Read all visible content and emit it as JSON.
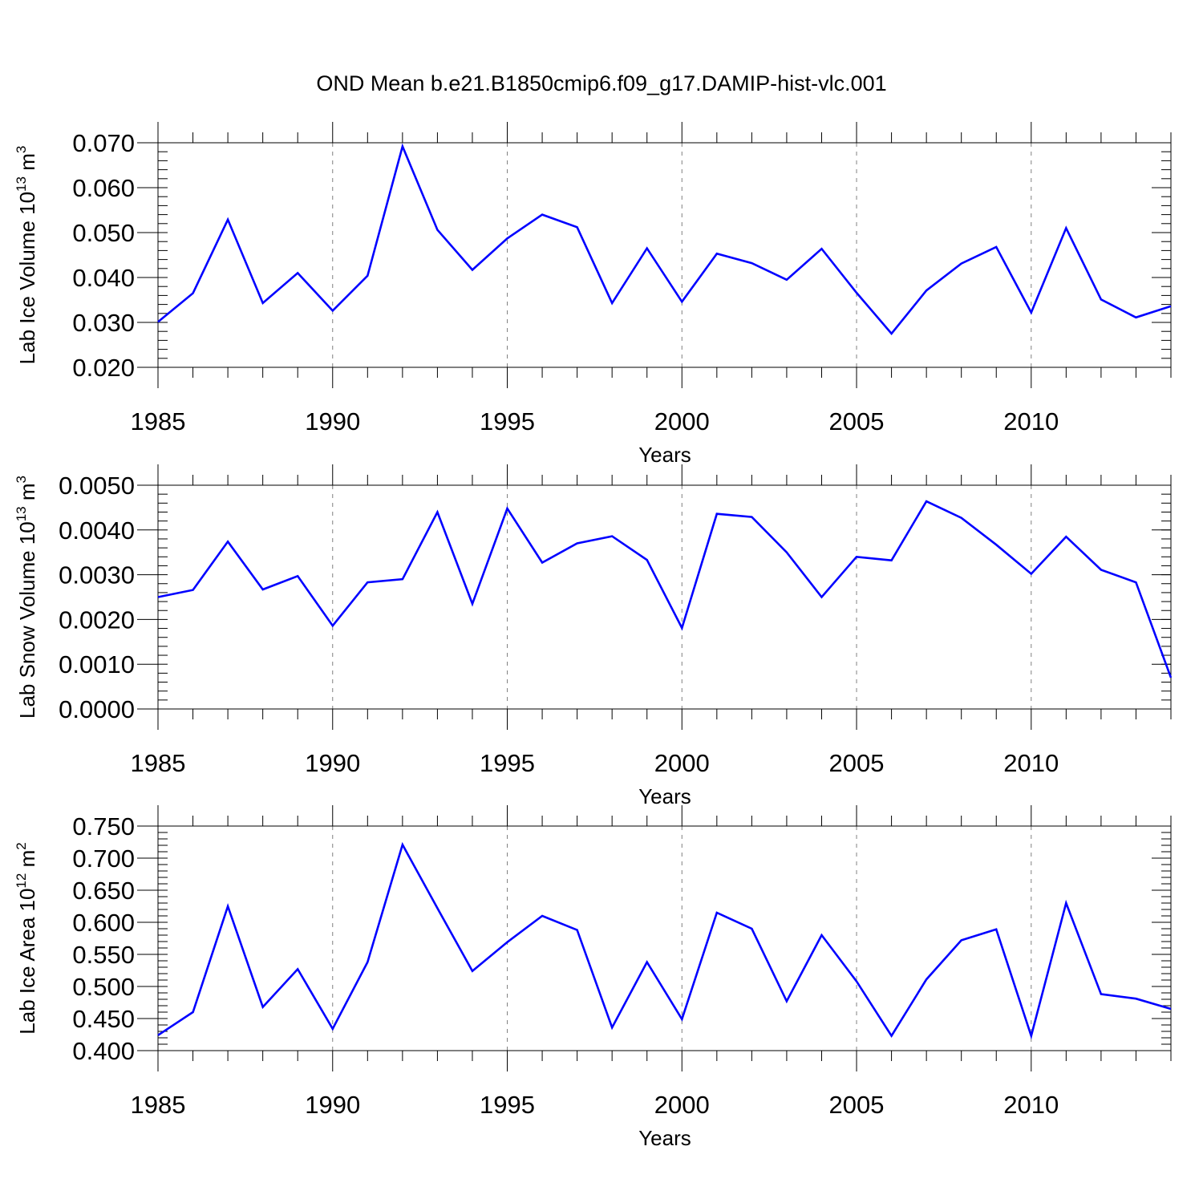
{
  "figure": {
    "title": "OND Mean b.e21.B1850cmip6.f09_g17.DAMIP-hist-vlc.001",
    "line_color": "#0000ff",
    "grid_color": "#808080"
  },
  "chart_data": [
    {
      "type": "line",
      "title": "",
      "xlabel": "Years",
      "ylabel_main": "Lab Ice Volume 10",
      "ylabel_exp": "13",
      "ylabel_unit": " m",
      "ylabel_unit_exp": "3",
      "xlim": [
        1985,
        2014
      ],
      "ylim": [
        0.02,
        0.07
      ],
      "xticks": [
        1985,
        1990,
        1995,
        2000,
        2005,
        2010
      ],
      "xtick_labels": [
        "1985",
        "1990",
        "1995",
        "2000",
        "2005",
        "2010"
      ],
      "yticks": [
        0.02,
        0.03,
        0.04,
        0.05,
        0.06,
        0.07
      ],
      "ytick_labels": [
        "0.020",
        "0.030",
        "0.040",
        "0.050",
        "0.060",
        "0.070"
      ],
      "y_minor_step": 0.002,
      "grid": "vertical dashed at major x ticks",
      "x": [
        1985,
        1986,
        1987,
        1988,
        1989,
        1990,
        1991,
        1992,
        1993,
        1994,
        1995,
        1996,
        1997,
        1998,
        1999,
        2000,
        2001,
        2002,
        2003,
        2004,
        2005,
        2006,
        2007,
        2008,
        2009,
        2010,
        2011,
        2012,
        2013,
        2014
      ],
      "series": [
        {
          "values": [
            0.0301,
            0.0365,
            0.0529,
            0.0343,
            0.041,
            0.0326,
            0.0404,
            0.0692,
            0.0506,
            0.0417,
            0.0487,
            0.054,
            0.0512,
            0.0343,
            0.0465,
            0.0346,
            0.0453,
            0.0432,
            0.0395,
            0.0464,
            0.0366,
            0.0275,
            0.0371,
            0.0431,
            0.0468,
            0.0322,
            0.051,
            0.0351,
            0.0311,
            0.0336
          ]
        }
      ]
    },
    {
      "type": "line",
      "title": "",
      "xlabel": "Years",
      "ylabel_main": "Lab Snow Volume 10",
      "ylabel_exp": "13",
      "ylabel_unit": " m",
      "ylabel_unit_exp": "3",
      "xlim": [
        1985,
        2014
      ],
      "ylim": [
        0.0,
        0.005
      ],
      "xticks": [
        1985,
        1990,
        1995,
        2000,
        2005,
        2010
      ],
      "xtick_labels": [
        "1985",
        "1990",
        "1995",
        "2000",
        "2005",
        "2010"
      ],
      "yticks": [
        0.0,
        0.001,
        0.002,
        0.003,
        0.004,
        0.005
      ],
      "ytick_labels": [
        "0.0000",
        "0.0010",
        "0.0020",
        "0.0030",
        "0.0040",
        "0.0050"
      ],
      "y_minor_step": 0.0002,
      "grid": "vertical dashed at major x ticks",
      "x": [
        1985,
        1986,
        1987,
        1988,
        1989,
        1990,
        1991,
        1992,
        1993,
        1994,
        1995,
        1996,
        1997,
        1998,
        1999,
        2000,
        2001,
        2002,
        2003,
        2004,
        2005,
        2006,
        2007,
        2008,
        2009,
        2010,
        2011,
        2012,
        2013,
        2014
      ],
      "series": [
        {
          "values": [
            0.0025,
            0.00266,
            0.00374,
            0.00267,
            0.00297,
            0.00186,
            0.00283,
            0.0029,
            0.0044,
            0.00235,
            0.00448,
            0.00327,
            0.0037,
            0.00386,
            0.00333,
            0.00181,
            0.00436,
            0.00429,
            0.0035,
            0.0025,
            0.0034,
            0.00332,
            0.00464,
            0.00427,
            0.00367,
            0.00302,
            0.00385,
            0.00311,
            0.00283,
            0.0007
          ]
        }
      ]
    },
    {
      "type": "line",
      "title": "",
      "xlabel": "Years",
      "ylabel_main": "Lab Ice Area 10",
      "ylabel_exp": "12",
      "ylabel_unit": " m",
      "ylabel_unit_exp": "2",
      "xlim": [
        1985,
        2014
      ],
      "ylim": [
        0.4,
        0.75
      ],
      "xticks": [
        1985,
        1990,
        1995,
        2000,
        2005,
        2010
      ],
      "xtick_labels": [
        "1985",
        "1990",
        "1995",
        "2000",
        "2005",
        "2010"
      ],
      "yticks": [
        0.4,
        0.45,
        0.5,
        0.55,
        0.6,
        0.65,
        0.7,
        0.75
      ],
      "ytick_labels": [
        "0.400",
        "0.450",
        "0.500",
        "0.550",
        "0.600",
        "0.650",
        "0.700",
        "0.750"
      ],
      "y_minor_step": 0.01,
      "grid": "vertical dashed at major x ticks",
      "x": [
        1985,
        1986,
        1987,
        1988,
        1989,
        1990,
        1991,
        1992,
        1993,
        1994,
        1995,
        1996,
        1997,
        1998,
        1999,
        2000,
        2001,
        2002,
        2003,
        2004,
        2005,
        2006,
        2007,
        2008,
        2009,
        2010,
        2011,
        2012,
        2013,
        2014
      ],
      "series": [
        {
          "values": [
            0.424,
            0.46,
            0.625,
            0.468,
            0.527,
            0.434,
            0.538,
            0.721,
            0.622,
            0.524,
            0.569,
            0.61,
            0.588,
            0.436,
            0.538,
            0.449,
            0.615,
            0.59,
            0.477,
            0.58,
            0.508,
            0.423,
            0.511,
            0.572,
            0.589,
            0.423,
            0.63,
            0.488,
            0.481,
            0.465
          ]
        }
      ]
    }
  ]
}
